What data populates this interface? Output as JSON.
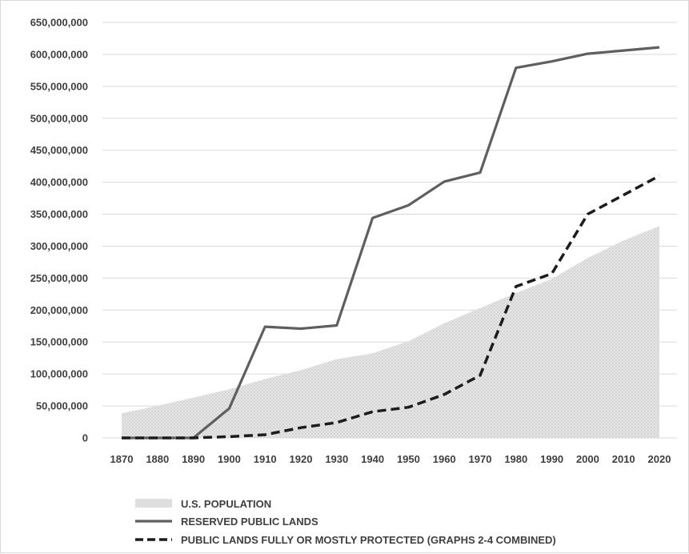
{
  "chart_data": {
    "type": "line",
    "title": "",
    "xlabel": "",
    "ylabel": "",
    "x": [
      1870,
      1880,
      1890,
      1900,
      1910,
      1920,
      1930,
      1940,
      1950,
      1960,
      1970,
      1980,
      1990,
      2000,
      2010,
      2020
    ],
    "xtick_labels": [
      "1870",
      "1880",
      "1890",
      "1900",
      "1910",
      "1920",
      "1930",
      "1940",
      "1950",
      "1960",
      "1970",
      "1980",
      "1990",
      "2000",
      "2010",
      "2020"
    ],
    "ylim": [
      0,
      650000000
    ],
    "yticks": [
      0,
      50000000,
      100000000,
      150000000,
      200000000,
      250000000,
      300000000,
      350000000,
      400000000,
      450000000,
      500000000,
      550000000,
      600000000,
      650000000
    ],
    "ytick_labels": [
      "0",
      "50,000,000",
      "100,000,000",
      "150,000,000",
      "200,000,000",
      "250,000,000",
      "300,000,000",
      "350,000,000",
      "400,000,000",
      "450,000,000",
      "500,000,000",
      "550,000,000",
      "600,000,000",
      "650,000,000"
    ],
    "grid": "horizontal",
    "legend_position": "bottom-left",
    "series": [
      {
        "name": "U.S. POPULATION",
        "type": "area",
        "color": "#d6d6d6",
        "values": [
          38600000,
          50200000,
          63000000,
          76200000,
          92200000,
          106000000,
          123200000,
          132200000,
          151300000,
          179300000,
          203200000,
          226500000,
          248700000,
          281400000,
          308700000,
          331400000
        ]
      },
      {
        "name": "RESERVED PUBLIC LANDS",
        "type": "line",
        "style": "solid",
        "color": "#5f5f5f",
        "values": [
          0,
          0,
          0,
          46000000,
          174000000,
          171000000,
          176000000,
          344000000,
          364000000,
          401000000,
          415000000,
          579000000,
          589000000,
          601000000,
          606000000,
          611000000
        ]
      },
      {
        "name": "PUBLIC LANDS FULLY OR MOSTLY PROTECTED (GRAPHS 2-4 COMBINED)",
        "type": "line",
        "style": "dashed",
        "color": "#1c1c1c",
        "values": [
          0,
          0,
          0,
          2000000,
          5000000,
          16000000,
          24000000,
          41000000,
          48000000,
          68000000,
          98000000,
          237000000,
          257000000,
          350000000,
          380000000,
          410000000
        ]
      }
    ]
  }
}
